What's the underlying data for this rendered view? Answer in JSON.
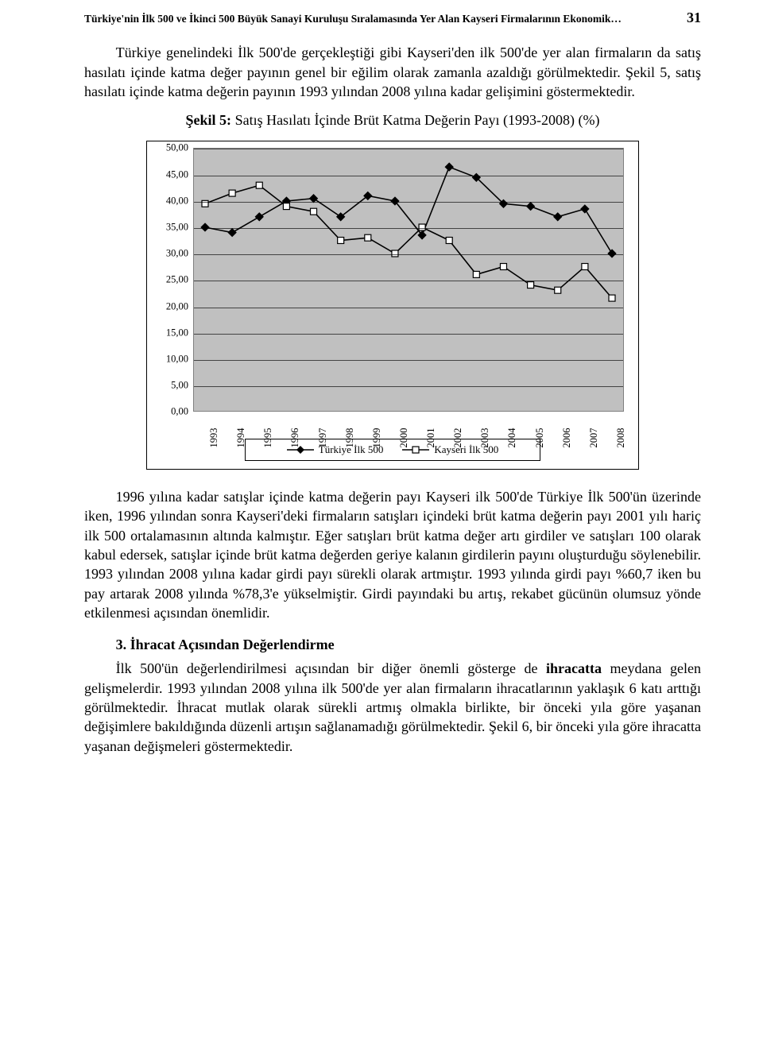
{
  "header": {
    "running_title": "Türkiye'nin İlk 500 ve İkinci 500 Büyük Sanayi Kuruluşu Sıralamasında Yer Alan Kayseri Firmalarının Ekonomik…",
    "page_number": "31"
  },
  "paragraphs": {
    "p1": "Türkiye genelindeki İlk 500'de gerçekleştiği gibi Kayseri'den ilk 500'de yer alan firmaların da satış hasılatı içinde katma değer payının genel bir eğilim olarak zamanla azaldığı görülmektedir. Şekil 5, satış hasılatı içinde katma değerin payının 1993 yılından 2008 yılına kadar gelişimini göstermektedir.",
    "fig_label": "Şekil 5:",
    "fig_caption": " Satış Hasılatı İçinde Brüt Katma Değerin Payı (1993-2008) (%)",
    "p2": "1996 yılına kadar satışlar içinde katma değerin payı Kayseri ilk 500'de Türkiye İlk 500'ün üzerinde iken, 1996 yılından sonra Kayseri'deki firmaların satışları içindeki brüt katma değerin payı 2001 yılı hariç ilk 500 ortalamasının altında kalmıştır. Eğer satışları brüt katma değer artı girdiler ve satışları 100 olarak kabul edersek, satışlar içinde brüt katma değerden geriye kalanın girdilerin payını oluşturduğu söylenebilir. 1993 yılından 2008 yılına kadar girdi payı sürekli olarak artmıştır. 1993 yılında girdi payı %60,7 iken bu pay artarak 2008 yılında %78,3'e yükselmiştir. Girdi payındaki bu artış, rekabet gücünün olumsuz yönde etkilenmesi açısından önemlidir.",
    "subhead": "3. İhracat Açısından Değerlendirme",
    "p3_a": "İlk 500'ün değerlendirilmesi açısından bir diğer önemli gösterge de ",
    "p3_b": "ihracatta",
    "p3_c": " meydana gelen gelişmelerdir. 1993 yılından 2008 yılına ilk 500'de yer alan firmaların ihracatlarının yaklaşık 6 katı arttığı görülmektedir. İhracat mutlak olarak sürekli artmış olmakla birlikte, bir önceki yıla göre yaşanan değişimlere bakıldığında düzenli artışın sağlanamadığı görülmektedir. Şekil 6, bir önceki yıla göre ihracatta yaşanan değişmeleri göstermektedir."
  },
  "chart": {
    "type": "line",
    "background_color": "#c0c0c0",
    "grid_color": "#000000",
    "categories": [
      "1993",
      "1994",
      "1995",
      "1996",
      "1997",
      "1998",
      "1999",
      "2000",
      "2001",
      "2002",
      "2003",
      "2004",
      "2005",
      "2006",
      "2007",
      "2008"
    ],
    "ylim": [
      0,
      50
    ],
    "ytick_labels": [
      "0,00",
      "5,00",
      "10,00",
      "15,00",
      "20,00",
      "25,00",
      "30,00",
      "35,00",
      "40,00",
      "45,00",
      "50,00"
    ],
    "ytick_values": [
      0,
      5,
      10,
      15,
      20,
      25,
      30,
      35,
      40,
      45,
      50
    ],
    "series": [
      {
        "name": "Türkiye İlk 500",
        "color": "#000000",
        "line_width": 1.6,
        "marker": "diamond",
        "marker_fill": "#000000",
        "values": [
          35.0,
          34.0,
          37.0,
          40.0,
          40.5,
          37.0,
          41.0,
          40.0,
          33.5,
          46.5,
          44.5,
          39.5,
          39.0,
          37.0,
          38.5,
          30.0
        ]
      },
      {
        "name": "Kayseri İlk 500",
        "color": "#000000",
        "line_width": 1.6,
        "marker": "square-open",
        "marker_fill": "#ffffff",
        "values": [
          39.5,
          41.5,
          43.0,
          39.0,
          38.0,
          32.5,
          33.0,
          30.0,
          35.0,
          32.5,
          26.0,
          27.5,
          24.0,
          23.0,
          27.5,
          21.5
        ]
      }
    ],
    "legend_labels": [
      "Türkiye İlk 500",
      "Kayseri İlk 500"
    ],
    "axis_fontsize": 12.5,
    "legend_fontsize": 13
  }
}
